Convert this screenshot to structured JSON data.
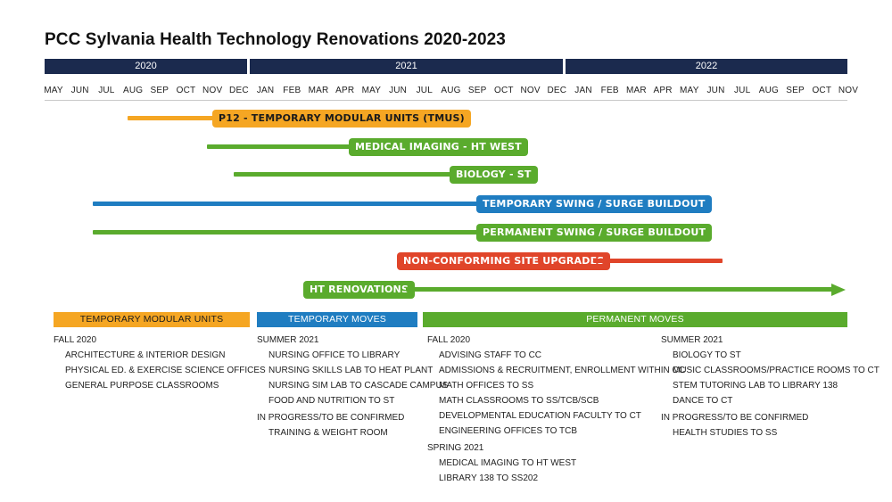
{
  "title": "PCC Sylvania Health Technology Renovations 2020-2023",
  "years": [
    "2020",
    "2021",
    "2022"
  ],
  "months": [
    "MAY",
    "JUN",
    "JUL",
    "AUG",
    "SEP",
    "OCT",
    "NOV",
    "DEC",
    "JAN",
    "FEB",
    "MAR",
    "APR",
    "MAY",
    "JUN",
    "JUL",
    "AUG",
    "SEP",
    "OCT",
    "NOV",
    "DEC",
    "JAN",
    "FEB",
    "MAR",
    "APR",
    "MAY",
    "JUN",
    "JUL",
    "AUG",
    "SEP",
    "OCT",
    "NOV"
  ],
  "colors": {
    "navy": "#1b2a4e",
    "orange": "#f5a623",
    "green": "#5aab2d",
    "blue": "#1f7dc1",
    "red": "#e0452a"
  },
  "projects": [
    {
      "label": "P12 - TEMPORARY MODULAR UNITS (TMUS)",
      "color": "orange"
    },
    {
      "label": "MEDICAL IMAGING - HT WEST",
      "color": "green"
    },
    {
      "label": "BIOLOGY - ST",
      "color": "green"
    },
    {
      "label": "TEMPORARY SWING / SURGE BUILDOUT",
      "color": "blue"
    },
    {
      "label": "PERMANENT SWING / SURGE BUILDOUT",
      "color": "green"
    },
    {
      "label": "NON-CONFORMING SITE UPGRADES",
      "color": "red"
    },
    {
      "label": "HT RENOVATIONS",
      "color": "green"
    }
  ],
  "categories": {
    "modular": {
      "header": "TEMPORARY MODULAR UNITS",
      "groups": [
        {
          "label": "FALL 2020",
          "items": [
            "ARCHITECTURE & INTERIOR DESIGN",
            "PHYSICAL ED. & EXERCISE SCIENCE OFFICES",
            "GENERAL PURPOSE CLASSROOMS"
          ]
        }
      ]
    },
    "temporary": {
      "header": "TEMPORARY MOVES",
      "groups": [
        {
          "label": "SUMMER 2021",
          "items": [
            "NURSING OFFICE TO LIBRARY",
            "NURSING SKILLS LAB TO HEAT PLANT",
            "NURSING SIM LAB TO CASCADE CAMPUS",
            "FOOD AND NUTRITION TO ST"
          ]
        },
        {
          "label": "IN PROGRESS/TO BE CONFIRMED",
          "items": [
            "TRAINING & WEIGHT ROOM"
          ]
        }
      ]
    },
    "permanent": {
      "header": "PERMANENT MOVES",
      "left_groups": [
        {
          "label": "FALL 2020",
          "items": [
            "ADVISING STAFF TO CC",
            "ADMISSIONS & RECRUITMENT, ENROLLMENT WITHIN CC",
            "MATH OFFICES TO SS",
            "MATH CLASSROOMS TO SS/TCB/SCB",
            "DEVELOPMENTAL EDUCATION FACULTY TO CT",
            "ENGINEERING OFFICES TO TCB"
          ]
        },
        {
          "label": "SPRING 2021",
          "items": [
            "MEDICAL IMAGING TO HT WEST",
            "LIBRARY 138 TO SS202"
          ]
        }
      ],
      "right_groups": [
        {
          "label": "SUMMER 2021",
          "items": [
            "BIOLOGY TO ST",
            "MUSIC CLASSROOMS/PRACTICE ROOMS TO CT",
            "STEM TUTORING LAB TO LIBRARY 138",
            "DANCE TO CT"
          ]
        },
        {
          "label": "IN PROGRESS/TO BE CONFIRMED",
          "items": [
            "HEALTH STUDIES TO SS"
          ]
        }
      ]
    }
  }
}
